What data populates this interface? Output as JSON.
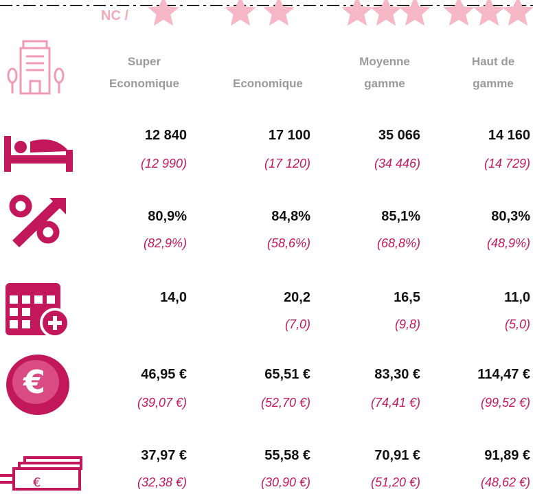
{
  "table": {
    "prefix": "NC /",
    "columns": [
      "Super Economique",
      "Economique",
      "Moyenne gamme",
      "Haut de gamme"
    ],
    "rows": [
      {
        "values": [
          "12 840",
          "17 100",
          "35 066",
          "14 160"
        ],
        "previous": [
          "(12 990)",
          "(17 120)",
          "(34 446)",
          "(14 729)"
        ]
      },
      {
        "values": [
          "80,9%",
          "84,8%",
          "85,1%",
          "80,3%"
        ],
        "previous": [
          "(82,9%)",
          "(58,6%)",
          "(68,8%)",
          "(48,9%)"
        ]
      },
      {
        "values": [
          "14,0",
          "20,2",
          "16,5",
          "11,0"
        ],
        "previous": [
          null,
          "(7,0)",
          "(9,8)",
          "(5,0)"
        ]
      },
      {
        "values": [
          "46,95 €",
          "65,51 €",
          "83,30 €",
          "114,47 €"
        ],
        "previous": [
          "(39,07 €)",
          "(52,70 €)",
          "(74,41 €)",
          "(99,52 €)"
        ]
      },
      {
        "values": [
          "37,97 €",
          "55,58 €",
          "70,91 €",
          "91,89 €"
        ],
        "previous": [
          "(32,38 €)",
          "(30,90 €)",
          "(51,20 €)",
          "(48,62 €)"
        ]
      }
    ]
  }
}
